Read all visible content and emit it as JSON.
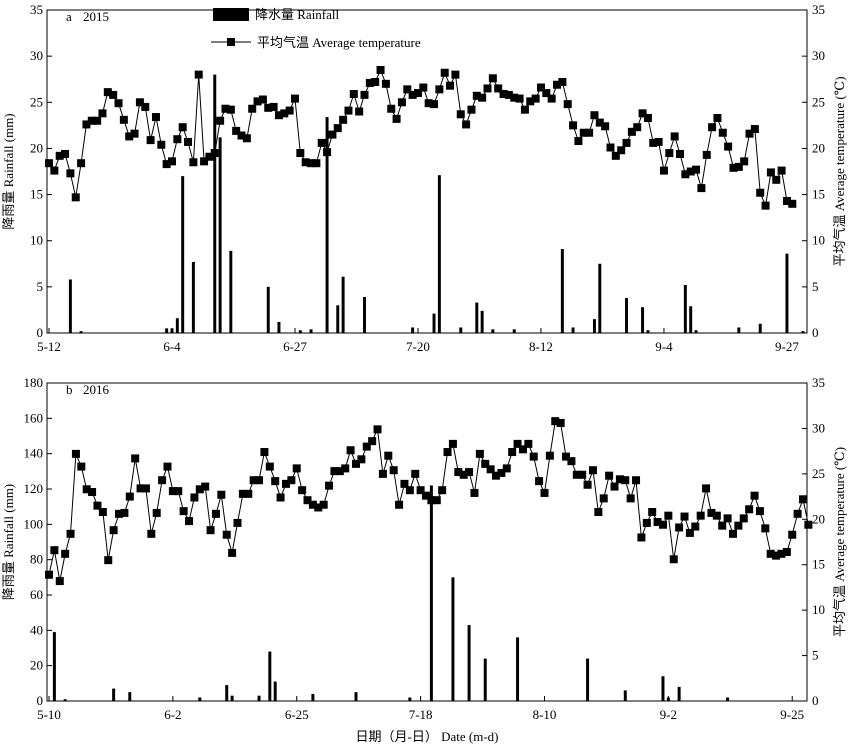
{
  "chart_data": [
    {
      "type": "bar+line",
      "panel_label": "a",
      "year": "2015",
      "ylabel_left": "降雨量 Rainfall (mm)",
      "ylabel_right": "平均气温 Average temperature (℃)",
      "ylim_left": [
        0,
        35
      ],
      "ylim_right": [
        0,
        35
      ],
      "yticks_left": [
        0,
        5,
        10,
        15,
        20,
        25,
        30,
        35
      ],
      "yticks_right": [
        0,
        5,
        10,
        15,
        20,
        25,
        30,
        35
      ],
      "x_start": "5-12",
      "x_end": "9-30",
      "xticks": [
        "5-12",
        "6-4",
        "6-27",
        "7-20",
        "8-12",
        "9-4",
        "9-27"
      ],
      "legend": {
        "position": "top-center",
        "rainfall": "降水量 Rainfall",
        "temperature": "平均气温 Average temperature"
      },
      "rainfall": [
        {
          "x": "5-16",
          "y": 5.8
        },
        {
          "x": "5-18",
          "y": 0.2
        },
        {
          "x": "6-3",
          "y": 0.5
        },
        {
          "x": "6-4",
          "y": 0.5
        },
        {
          "x": "6-5",
          "y": 1.6
        },
        {
          "x": "6-6",
          "y": 17.0
        },
        {
          "x": "6-8",
          "y": 7.7
        },
        {
          "x": "6-12",
          "y": 28.0
        },
        {
          "x": "6-13",
          "y": 21.2
        },
        {
          "x": "6-15",
          "y": 8.9
        },
        {
          "x": "6-22",
          "y": 5.0
        },
        {
          "x": "6-24",
          "y": 1.2
        },
        {
          "x": "6-28",
          "y": 0.3
        },
        {
          "x": "6-30",
          "y": 0.4
        },
        {
          "x": "7-3",
          "y": 23.4
        },
        {
          "x": "7-5",
          "y": 3.0
        },
        {
          "x": "7-6",
          "y": 6.1
        },
        {
          "x": "7-10",
          "y": 3.9
        },
        {
          "x": "7-19",
          "y": 0.6
        },
        {
          "x": "7-23",
          "y": 2.1
        },
        {
          "x": "7-24",
          "y": 17.1
        },
        {
          "x": "7-28",
          "y": 0.6
        },
        {
          "x": "7-31",
          "y": 3.3
        },
        {
          "x": "8-1",
          "y": 2.4
        },
        {
          "x": "8-3",
          "y": 0.4
        },
        {
          "x": "8-7",
          "y": 0.4
        },
        {
          "x": "8-16",
          "y": 9.1
        },
        {
          "x": "8-18",
          "y": 0.6
        },
        {
          "x": "8-22",
          "y": 1.5
        },
        {
          "x": "8-23",
          "y": 7.5
        },
        {
          "x": "8-28",
          "y": 3.8
        },
        {
          "x": "8-31",
          "y": 2.8
        },
        {
          "x": "9-1",
          "y": 0.3
        },
        {
          "x": "9-8",
          "y": 5.2
        },
        {
          "x": "9-9",
          "y": 2.9
        },
        {
          "x": "9-10",
          "y": 0.3
        },
        {
          "x": "9-18",
          "y": 0.6
        },
        {
          "x": "9-22",
          "y": 1.0
        },
        {
          "x": "9-27",
          "y": 8.6
        },
        {
          "x": "9-30",
          "y": 0.2
        }
      ],
      "temperature": [
        18.4,
        17.6,
        19.2,
        19.4,
        17.3,
        14.7,
        18.4,
        22.6,
        23.0,
        23.0,
        23.8,
        26.1,
        25.8,
        24.9,
        23.1,
        21.3,
        21.6,
        25.0,
        24.5,
        20.9,
        23.4,
        20.4,
        18.3,
        18.6,
        21.0,
        22.3,
        20.7,
        18.5,
        28.0,
        18.6,
        19.1,
        19.5,
        23.0,
        24.3,
        24.2,
        21.9,
        21.4,
        21.1,
        24.3,
        25.1,
        25.3,
        24.4,
        24.5,
        23.6,
        23.8,
        24.1,
        25.4,
        19.5,
        18.5,
        18.4,
        18.4,
        20.6,
        19.6,
        21.5,
        22.2,
        23.1,
        24.1,
        25.9,
        24.0,
        25.8,
        27.1,
        27.2,
        28.5,
        27.0,
        24.3,
        23.2,
        25.0,
        26.4,
        25.8,
        26.0,
        26.6,
        24.9,
        24.8,
        26.4,
        28.2,
        26.8,
        28.0,
        23.7,
        22.6,
        24.2,
        25.7,
        25.5,
        26.5,
        27.6,
        26.5,
        25.9,
        25.8,
        25.5,
        25.4,
        24.2,
        25.1,
        25.4,
        26.6,
        26.0,
        25.4,
        26.9,
        27.2,
        24.8,
        22.5,
        20.8,
        21.7,
        21.7,
        23.6,
        22.8,
        22.4,
        20.1,
        19.2,
        19.8,
        20.6,
        21.8,
        22.3,
        23.8,
        23.3,
        20.6,
        20.7,
        17.6,
        19.5,
        21.3,
        19.4,
        17.2,
        17.5,
        17.7,
        15.7,
        19.3,
        22.3,
        23.3,
        21.7,
        20.2,
        17.9,
        18.0,
        18.6,
        21.6,
        22.1,
        15.2,
        13.8,
        17.4,
        16.6,
        17.6,
        14.3,
        14.0
      ]
    },
    {
      "type": "bar+line",
      "panel_label": "b",
      "year": "2016",
      "ylabel_left": "降雨量 Rainfall (mm)",
      "ylabel_right": "平均气温 Average temperature (℃)",
      "ylim_left": [
        0,
        180
      ],
      "ylim_right": [
        0,
        35
      ],
      "yticks_left": [
        0,
        20,
        40,
        60,
        80,
        100,
        120,
        140,
        160,
        180
      ],
      "yticks_right": [
        0,
        5,
        10,
        15,
        20,
        25,
        30,
        35
      ],
      "x_start": "5-10",
      "x_end": "9-27",
      "xticks": [
        "5-10",
        "6-2",
        "6-25",
        "7-18",
        "8-10",
        "9-2",
        "9-25"
      ],
      "xlabel": "日期（月-日） Date (m-d)",
      "rainfall": [
        {
          "x": "5-11",
          "y": 39
        },
        {
          "x": "5-13",
          "y": 1
        },
        {
          "x": "5-22",
          "y": 7
        },
        {
          "x": "5-25",
          "y": 5
        },
        {
          "x": "6-7",
          "y": 2
        },
        {
          "x": "6-12",
          "y": 9
        },
        {
          "x": "6-13",
          "y": 3
        },
        {
          "x": "6-18",
          "y": 3
        },
        {
          "x": "6-20",
          "y": 28
        },
        {
          "x": "6-21",
          "y": 11
        },
        {
          "x": "6-28",
          "y": 4
        },
        {
          "x": "7-6",
          "y": 5
        },
        {
          "x": "7-16",
          "y": 2
        },
        {
          "x": "7-20",
          "y": 122
        },
        {
          "x": "7-24",
          "y": 70
        },
        {
          "x": "7-27",
          "y": 43
        },
        {
          "x": "7-30",
          "y": 24
        },
        {
          "x": "8-5",
          "y": 36
        },
        {
          "x": "8-18",
          "y": 24
        },
        {
          "x": "8-25",
          "y": 6
        },
        {
          "x": "9-1",
          "y": 14
        },
        {
          "x": "9-2",
          "y": 2
        },
        {
          "x": "9-4",
          "y": 8
        },
        {
          "x": "9-13",
          "y": 2
        }
      ],
      "temperature": [
        13.9,
        16.6,
        13.2,
        16.2,
        18.4,
        27.2,
        25.8,
        23.3,
        23.0,
        21.5,
        20.8,
        15.5,
        18.8,
        20.6,
        20.7,
        22.5,
        26.7,
        23.4,
        23.4,
        18.4,
        20.7,
        24.3,
        25.8,
        23.1,
        23.1,
        20.9,
        19.8,
        22.4,
        23.3,
        23.6,
        18.8,
        20.6,
        22.7,
        18.3,
        16.3,
        19.6,
        22.8,
        22.8,
        24.3,
        24.3,
        27.4,
        25.8,
        24.2,
        22.4,
        23.9,
        24.3,
        25.6,
        23.2,
        22.1,
        21.6,
        21.3,
        21.6,
        23.7,
        25.3,
        25.3,
        25.6,
        27.6,
        26.1,
        26.6,
        28.0,
        28.6,
        29.9,
        25.0,
        27.0,
        25.4,
        21.6,
        23.9,
        23.2,
        25.0,
        23.2,
        22.6,
        22.1,
        22.1,
        23.2,
        27.4,
        28.3,
        25.2,
        24.9,
        25.2,
        22.9,
        27.2,
        26.1,
        25.5,
        24.8,
        25.1,
        25.6,
        27.4,
        28.3,
        27.7,
        28.3,
        26.9,
        24.2,
        22.9,
        27.0,
        30.8,
        30.6,
        26.9,
        26.4,
        24.9,
        24.9,
        23.8,
        25.4,
        20.8,
        22.3,
        24.8,
        23.6,
        24.4,
        24.3,
        22.3,
        24.3,
        18.0,
        19.6,
        20.8,
        19.7,
        19.4,
        20.4,
        15.6,
        19.1,
        20.3,
        18.5,
        19.2,
        20.4,
        23.4,
        20.7,
        20.4,
        19.3,
        20.1,
        18.4,
        19.3,
        20.1,
        21.1,
        22.6,
        20.9,
        19.0,
        16.2,
        16.0,
        16.2,
        16.4,
        18.3,
        20.6,
        22.2,
        19.4
      ]
    }
  ]
}
